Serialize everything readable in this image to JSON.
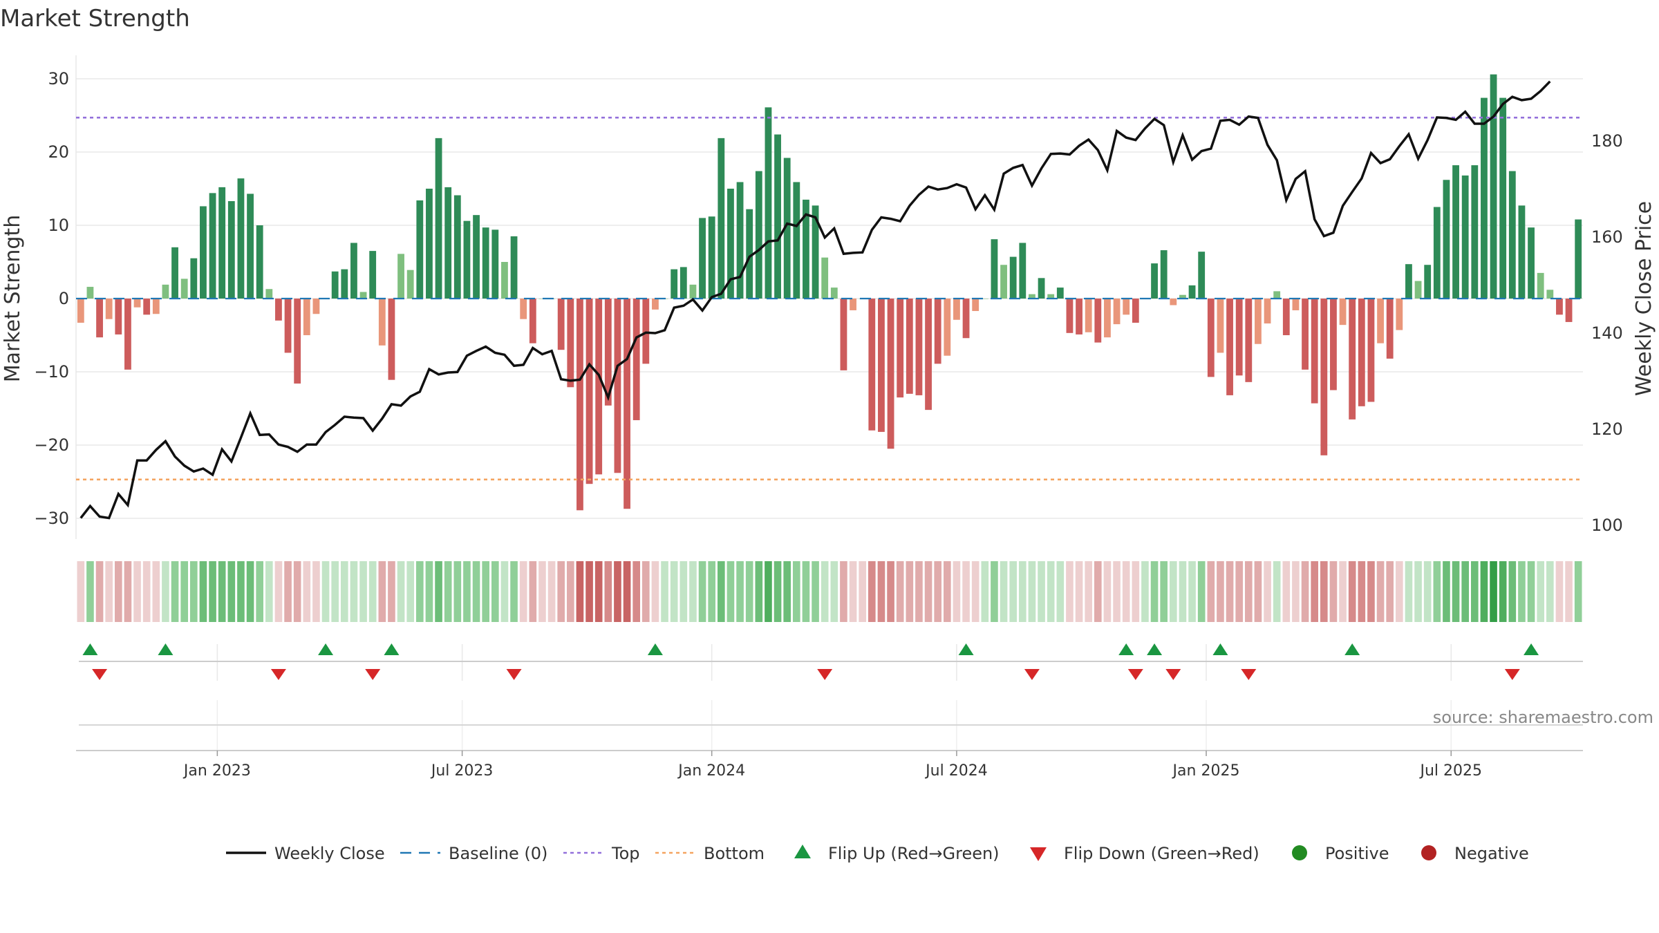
{
  "chart_data": {
    "type": "bar",
    "title": "Market Strength",
    "ylabel": "Market Strength",
    "y2label": "Weekly Close Price",
    "ylim": [
      -33,
      33
    ],
    "y2lim": [
      96.5,
      197
    ],
    "yticks": [
      30,
      20,
      10,
      0,
      -10,
      -20,
      -30
    ],
    "y2ticks": [
      180,
      160,
      140,
      120,
      100
    ],
    "x_tick_labels": [
      {
        "label": "Jan 2023",
        "week": 15
      },
      {
        "label": "Jul 2023",
        "week": 41
      },
      {
        "label": "Jan 2024",
        "week": 67.5
      },
      {
        "label": "Jul 2024",
        "week": 93.5
      },
      {
        "label": "Jan 2025",
        "week": 120
      },
      {
        "label": "Jul 2025",
        "week": 146
      }
    ],
    "reference_lines": {
      "baseline": 0,
      "top": 24.7,
      "bottom": -24.7
    },
    "strength": [
      -3.3,
      1.6,
      -5.3,
      -2.8,
      -4.9,
      -9.7,
      -1.2,
      -2.2,
      -2.1,
      1.9,
      7,
      2.7,
      5.5,
      12.6,
      14.4,
      15.2,
      13.3,
      16.4,
      14.3,
      10,
      1.3,
      -3,
      -7.4,
      -11.6,
      -5,
      -2.1,
      0,
      3.7,
      4,
      7.6,
      0.9,
      6.5,
      -6.4,
      -11.1,
      6.1,
      3.9,
      13.4,
      15,
      21.9,
      15.2,
      14.1,
      10.6,
      11.4,
      9.7,
      9.4,
      5,
      8.5,
      -2.8,
      -6.1,
      0,
      0,
      -7,
      -12.1,
      -28.9,
      -25.3,
      -24,
      -14.6,
      -23.8,
      -28.7,
      -16.6,
      -8.9,
      -1.5,
      0,
      4,
      4.3,
      1.9,
      11,
      11.2,
      21.9,
      15,
      15.9,
      12.2,
      17.4,
      26.1,
      22.4,
      19.2,
      15.9,
      13.5,
      12.7,
      5.6,
      1.5,
      -9.8,
      -1.6,
      0,
      -18,
      -18.2,
      -20.5,
      -13.5,
      -13,
      -13.2,
      -15.2,
      -8.9,
      -7.8,
      -2.9,
      -5.4,
      -1.7,
      0,
      8.1,
      4.6,
      5.7,
      7.6,
      0.6,
      2.8,
      0.6,
      1.5,
      -4.7,
      -4.9,
      -4.6,
      -6,
      -5.3,
      -3.5,
      -2.2,
      -3.3,
      0,
      4.8,
      6.6,
      -0.9,
      0.5,
      1.8,
      6.4,
      -10.7,
      -7.4,
      -13.2,
      -10.5,
      -11.4,
      -6.2,
      -3.4,
      1,
      -5,
      -1.6,
      -9.7,
      -14.3,
      -21.4,
      -12.5,
      -3.6,
      -16.5,
      -14.7,
      -14.1,
      -6.1,
      -8.2,
      -4.3,
      4.7,
      2.4,
      4.6,
      12.5,
      16.2,
      18.2,
      16.8,
      18.2,
      27.4,
      30.6,
      27.4,
      17.4,
      12.7,
      9.7,
      3.5,
      1.2,
      -2.2,
      -3.2,
      10.8
    ],
    "weekly_close": [
      101.5,
      104,
      101.8,
      101.5,
      106.5,
      104.2,
      113.5,
      113.5,
      115.7,
      117.5,
      114.3,
      112.4,
      111.2,
      111.8,
      110.5,
      115.8,
      113.3,
      118.2,
      123.3,
      118.8,
      118.9,
      116.8,
      116.3,
      115.3,
      116.8,
      116.8,
      119.4,
      120.9,
      122.6,
      122.4,
      122.3,
      119.7,
      122.2,
      125.2,
      124.9,
      126.8,
      127.8,
      132.5,
      131.4,
      131.8,
      131.9,
      135.3,
      136.3,
      137.2,
      135.9,
      135.5,
      133.2,
      133.4,
      136.9,
      135.6,
      136.3,
      130.4,
      130.1,
      130.3,
      133.5,
      131.3,
      126.6,
      133.2,
      134.6,
      139.1,
      140.1,
      140,
      140.6,
      145.3,
      145.7,
      147,
      144.7,
      147.5,
      148.2,
      151.2,
      151.7,
      155.9,
      157.3,
      159.1,
      159.3,
      162.8,
      162.3,
      164.7,
      164.1,
      159.9,
      161.8,
      156.5,
      156.7,
      156.8,
      161.5,
      164.1,
      163.8,
      163.3,
      166.5,
      168.8,
      170.5,
      169.9,
      170.2,
      171,
      170.3,
      165.8,
      168.7,
      165.7,
      173.2,
      174.4,
      175,
      170.7,
      174.3,
      177.3,
      177.4,
      177.2,
      179,
      180.3,
      178.1,
      173.9,
      182.1,
      180.7,
      180.2,
      182.6,
      184.6,
      183.3,
      175.6,
      181.2,
      176.1,
      177.9,
      178.4,
      184.2,
      184.4,
      183.4,
      185.1,
      184.8,
      179.2,
      176,
      167.7,
      172.1,
      173.7,
      163.7,
      160.2,
      160.9,
      166.5,
      169.4,
      172.2,
      177.5,
      175.4,
      176.2,
      178.9,
      181.4,
      176.3,
      180.2,
      184.9,
      184.8,
      184.4,
      186.1,
      183.6,
      183.6,
      185.1,
      187.7,
      189.2,
      188.5,
      188.8,
      190.4,
      192.4
    ],
    "rating_band": [
      -1,
      2,
      -2,
      -1,
      -2,
      -2,
      -1,
      -1,
      -1,
      1,
      2,
      2,
      2,
      3,
      3,
      3,
      3,
      3,
      3,
      2,
      1,
      -1,
      -2,
      -2,
      -1,
      -1,
      1,
      1,
      1,
      1,
      1,
      1,
      -2,
      -2,
      1,
      1,
      2,
      2,
      3,
      2,
      2,
      2,
      2,
      2,
      2,
      1,
      2,
      -1,
      -2,
      -1,
      -1,
      -2,
      -2,
      -4,
      -4,
      -4,
      -3,
      -4,
      -4,
      -3,
      -2,
      -1,
      1,
      1,
      1,
      1,
      2,
      2,
      3,
      2,
      2,
      2,
      3,
      4,
      3,
      3,
      2,
      2,
      2,
      1,
      1,
      -2,
      -1,
      -1,
      -3,
      -3,
      -3,
      -2,
      -2,
      -2,
      -2,
      -2,
      -2,
      -1,
      -1,
      -1,
      1,
      2,
      1,
      1,
      1,
      1,
      1,
      1,
      1,
      -1,
      -1,
      -1,
      -2,
      -1,
      -1,
      -1,
      -1,
      1,
      2,
      2,
      1,
      1,
      1,
      2,
      -2,
      -2,
      -2,
      -2,
      -2,
      -2,
      -1,
      1,
      -1,
      -1,
      -2,
      -3,
      -3,
      -2,
      -1,
      -3,
      -3,
      -3,
      -2,
      -2,
      -1,
      1,
      1,
      1,
      2,
      3,
      3,
      3,
      3,
      4,
      5,
      4,
      3,
      2,
      2,
      1,
      1,
      -1,
      -1,
      2
    ],
    "flip_up_weeks": [
      1,
      9,
      26,
      33,
      61,
      94,
      111,
      114,
      121,
      135,
      154
    ],
    "flip_down_weeks": [
      2,
      21,
      31,
      46,
      79,
      101,
      112,
      116,
      124,
      152
    ],
    "source": "source: sharemaestro.com",
    "legend": [
      "Weekly Close",
      "Baseline (0)",
      "Top",
      "Bottom",
      "Flip Up (Red→Green)",
      "Flip Down (Green→Red)",
      "Positive",
      "Negative"
    ],
    "colors": {
      "pos_strong": "#2e8b57",
      "pos_weak": "#7fbf7f",
      "neg_strong": "#cd5c5c",
      "neg_weak": "#e9967a",
      "price": "#111111",
      "baseline": "#1f77b4",
      "top": "#9370db",
      "bottom": "#f4a460",
      "flip_up": "#1a9641",
      "flip_down": "#d62728",
      "positive": "#228b22",
      "negative": "#b22222"
    }
  }
}
